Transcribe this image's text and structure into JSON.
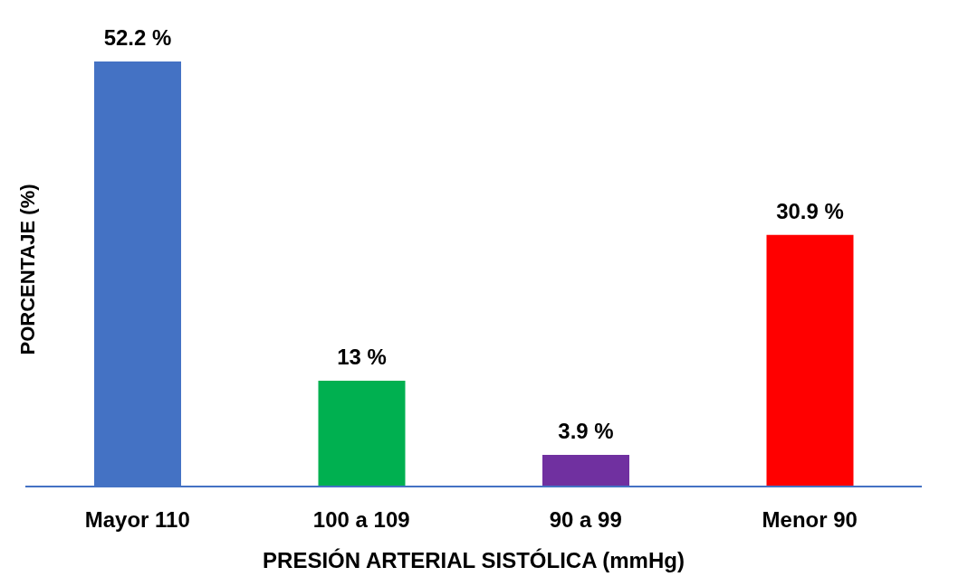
{
  "chart_data": {
    "type": "bar",
    "xlabel": "PRESIÓN ARTERIAL SISTÓLICA (mmHg)",
    "ylabel": "PORCENTAJE (%)",
    "categories": [
      "Mayor 110",
      "100 a 109",
      "90 a 99",
      "Menor 90"
    ],
    "values": [
      52.2,
      13,
      3.9,
      30.9
    ],
    "colors": [
      "#4472c4",
      "#00b050",
      "#7030a0",
      "#ff0000"
    ],
    "value_labels": [
      "52.2 %",
      "13 %",
      "3.9 %",
      "30.9 %"
    ]
  }
}
